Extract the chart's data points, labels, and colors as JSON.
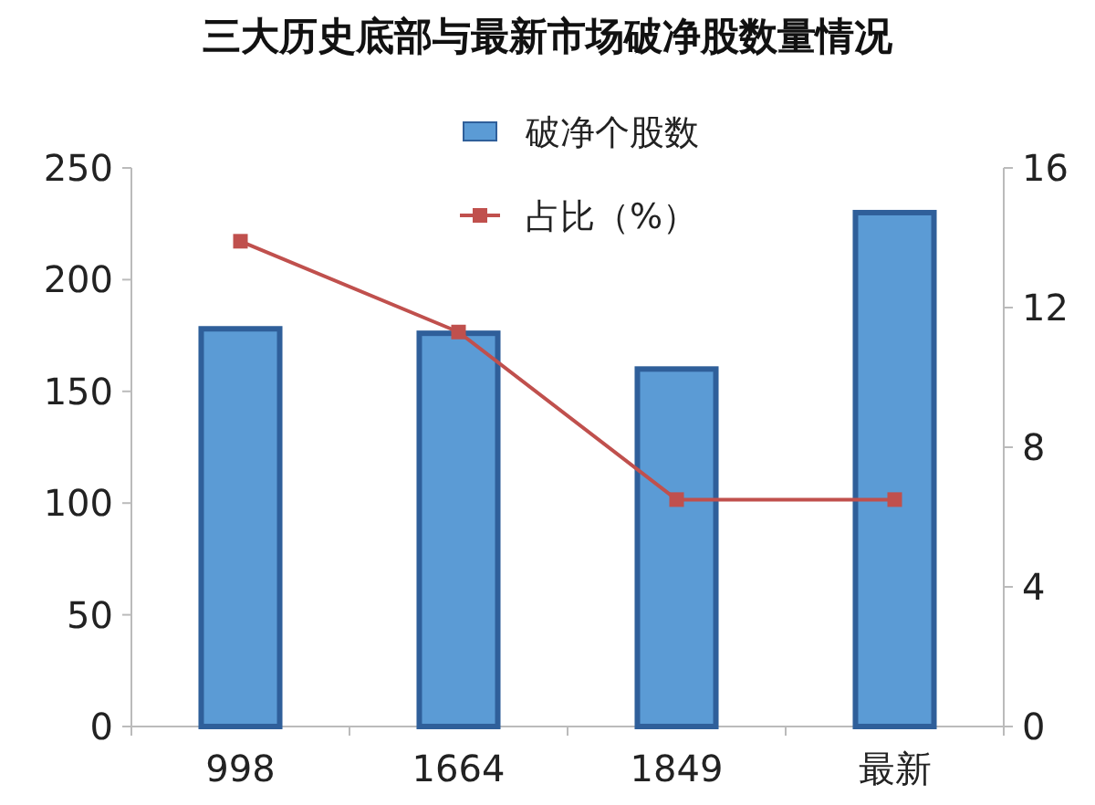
{
  "chart_data": {
    "type": "bar",
    "title": "三大历史底部与最新市场破净股数量情况",
    "categories": [
      "998",
      "1664",
      "1849",
      "最新"
    ],
    "series": [
      {
        "name": "破净个股数",
        "color": "#5b9bd5",
        "values": [
          178,
          176,
          160,
          230
        ]
      },
      {
        "name": "占比（%）",
        "type": "line",
        "axis": "y2",
        "color": "#c0504d",
        "values": [
          13.9,
          11.3,
          6.5,
          6.5
        ]
      }
    ],
    "ylim": [
      0,
      250
    ],
    "yticks": [
      0,
      50,
      100,
      150,
      200,
      250
    ],
    "y2lim": [
      0,
      16
    ],
    "y2ticks": [
      0,
      4,
      8,
      12,
      16
    ],
    "marker": "square",
    "legend": "top"
  }
}
